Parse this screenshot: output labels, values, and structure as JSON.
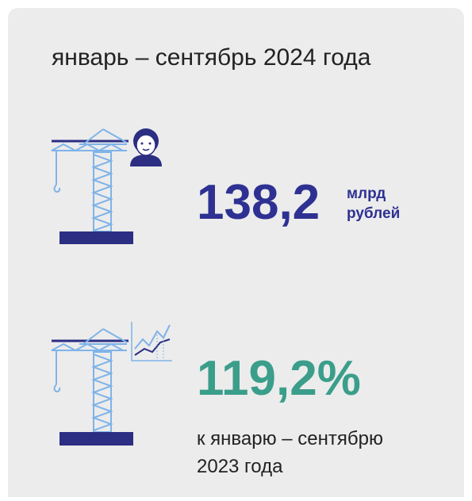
{
  "title": "январь – сентябрь 2024 года",
  "stats": [
    {
      "value": "138,2",
      "unit": [
        "млрд",
        "рублей"
      ]
    },
    {
      "value": "119,2%",
      "caption": [
        "к январю – сентябрю",
        "2023 года"
      ]
    }
  ]
}
